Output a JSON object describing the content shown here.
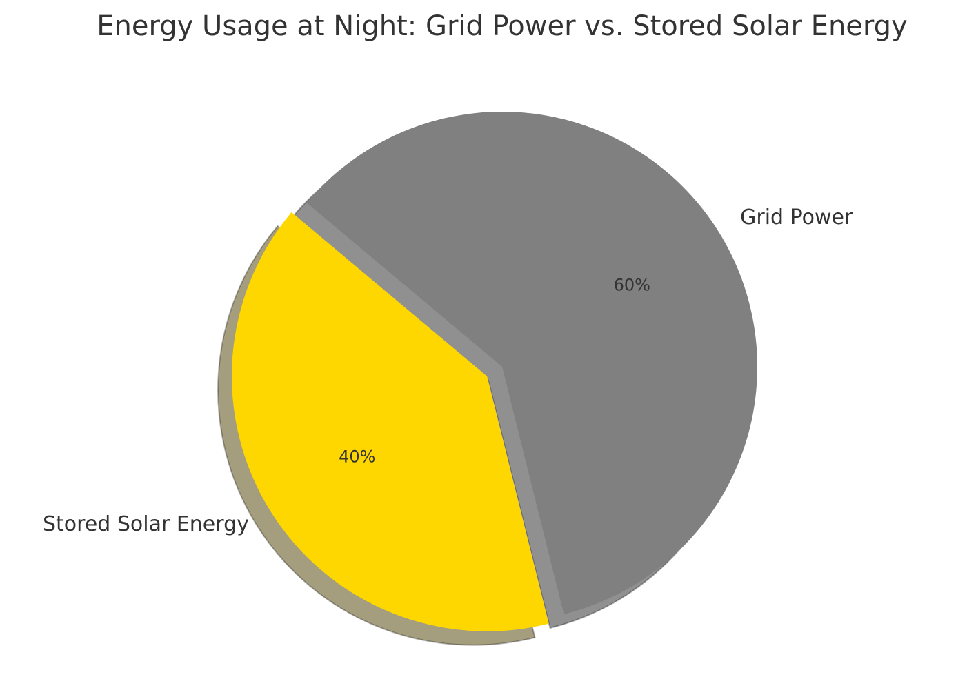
{
  "chart_data": {
    "type": "pie",
    "title": "Energy Usage at Night: Grid Power vs. Stored Solar Energy",
    "categories": [
      "Stored Solar Energy",
      "Grid Power"
    ],
    "values": [
      40,
      60
    ],
    "value_labels": [
      "40%",
      "60%"
    ],
    "colors": [
      "#ffd700",
      "#808080"
    ],
    "startangle": 140,
    "explode": [
      0.07,
      0
    ],
    "shadow": true
  }
}
